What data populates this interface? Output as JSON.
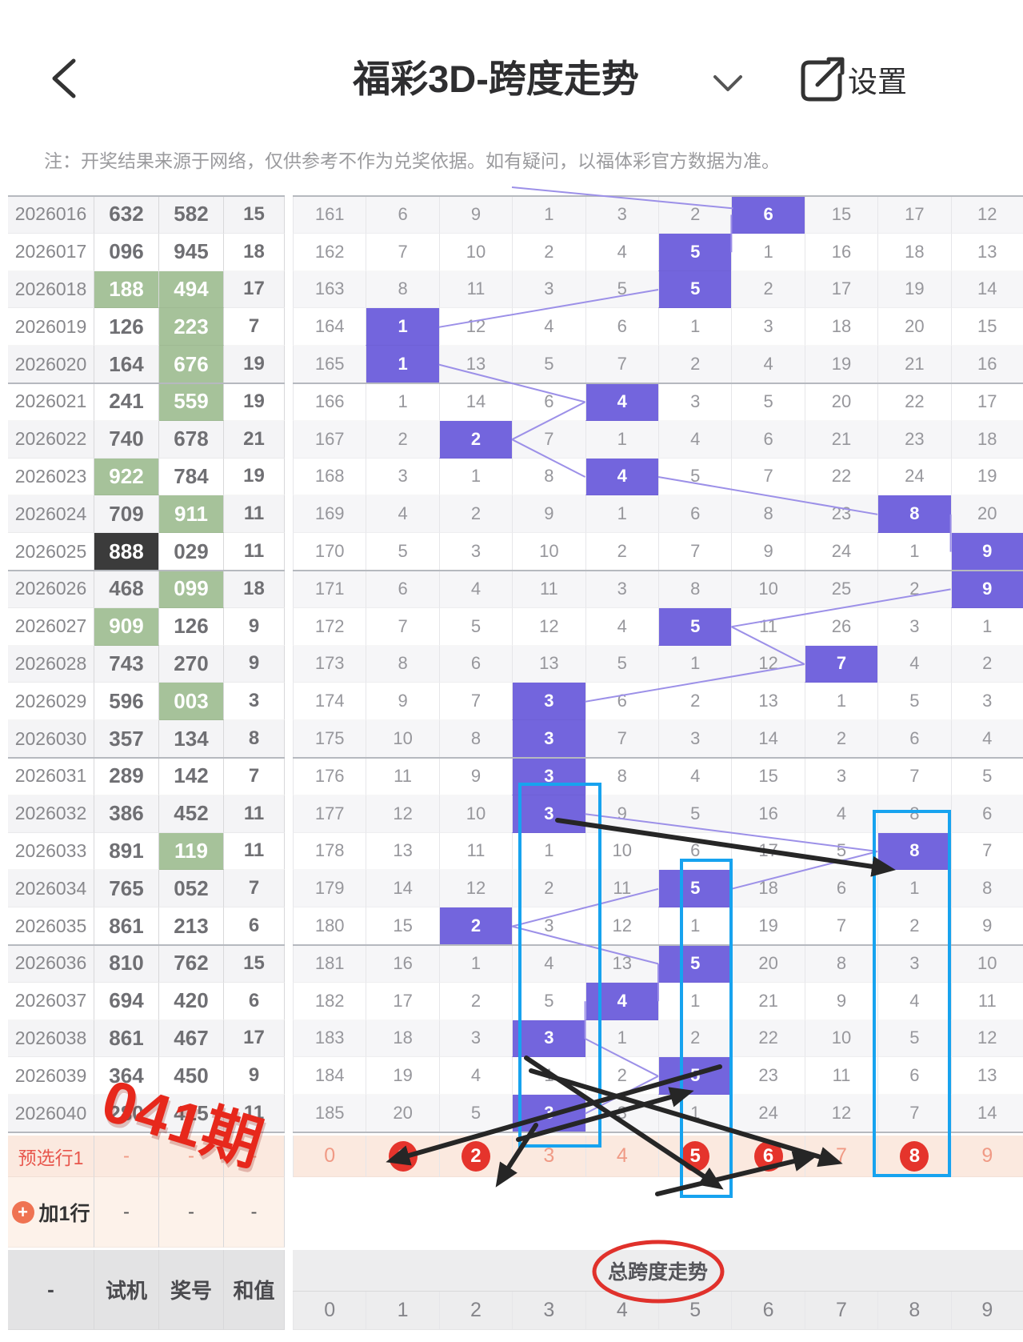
{
  "header": {
    "title": "福彩3D-跨度走势",
    "settings_label": "设置",
    "back_icon": "chevron-left-icon",
    "dropdown_icon": "chevron-down-icon",
    "share_icon": "share-icon"
  },
  "notice": "注：开奖结果来源于网络，仅供参考不作为兑奖依据。如有疑问，以福体彩官方数据为准。",
  "colors": {
    "highlight_purple": "#7365dd",
    "highlight_green": "#a6c29a",
    "highlight_black": "#3b3b3b",
    "pink_row_bg": "#fbe9df",
    "red_accent": "#e5342c",
    "cyan_annotation": "#17a3ef",
    "connector_purple": "#9c90e8"
  },
  "left_table": {
    "rows": [
      {
        "period": "2026016",
        "shiji": "632",
        "award": "582",
        "sum": "15",
        "shiji_hl": "",
        "award_hl": ""
      },
      {
        "period": "2026017",
        "shiji": "096",
        "award": "945",
        "sum": "18",
        "shiji_hl": "",
        "award_hl": ""
      },
      {
        "period": "2026018",
        "shiji": "188",
        "award": "494",
        "sum": "17",
        "shiji_hl": "green",
        "award_hl": "green"
      },
      {
        "period": "2026019",
        "shiji": "126",
        "award": "223",
        "sum": "7",
        "shiji_hl": "",
        "award_hl": "green"
      },
      {
        "period": "2026020",
        "shiji": "164",
        "award": "676",
        "sum": "19",
        "shiji_hl": "",
        "award_hl": "green"
      },
      {
        "period": "2026021",
        "shiji": "241",
        "award": "559",
        "sum": "19",
        "shiji_hl": "",
        "award_hl": "green"
      },
      {
        "period": "2026022",
        "shiji": "740",
        "award": "678",
        "sum": "21",
        "shiji_hl": "",
        "award_hl": ""
      },
      {
        "period": "2026023",
        "shiji": "922",
        "award": "784",
        "sum": "19",
        "shiji_hl": "green",
        "award_hl": ""
      },
      {
        "period": "2026024",
        "shiji": "709",
        "award": "911",
        "sum": "11",
        "shiji_hl": "",
        "award_hl": "green"
      },
      {
        "period": "2026025",
        "shiji": "888",
        "award": "029",
        "sum": "11",
        "shiji_hl": "black",
        "award_hl": ""
      },
      {
        "period": "2026026",
        "shiji": "468",
        "award": "099",
        "sum": "18",
        "shiji_hl": "",
        "award_hl": "green"
      },
      {
        "period": "2026027",
        "shiji": "909",
        "award": "126",
        "sum": "9",
        "shiji_hl": "green",
        "award_hl": ""
      },
      {
        "period": "2026028",
        "shiji": "743",
        "award": "270",
        "sum": "9",
        "shiji_hl": "",
        "award_hl": ""
      },
      {
        "period": "2026029",
        "shiji": "596",
        "award": "003",
        "sum": "3",
        "shiji_hl": "",
        "award_hl": "green"
      },
      {
        "period": "2026030",
        "shiji": "357",
        "award": "134",
        "sum": "8",
        "shiji_hl": "",
        "award_hl": ""
      },
      {
        "period": "2026031",
        "shiji": "289",
        "award": "142",
        "sum": "7",
        "shiji_hl": "",
        "award_hl": ""
      },
      {
        "period": "2026032",
        "shiji": "386",
        "award": "452",
        "sum": "11",
        "shiji_hl": "",
        "award_hl": ""
      },
      {
        "period": "2026033",
        "shiji": "891",
        "award": "119",
        "sum": "11",
        "shiji_hl": "",
        "award_hl": "green"
      },
      {
        "period": "2026034",
        "shiji": "765",
        "award": "052",
        "sum": "7",
        "shiji_hl": "",
        "award_hl": ""
      },
      {
        "period": "2026035",
        "shiji": "861",
        "award": "213",
        "sum": "6",
        "shiji_hl": "",
        "award_hl": ""
      },
      {
        "period": "2026036",
        "shiji": "810",
        "award": "762",
        "sum": "15",
        "shiji_hl": "",
        "award_hl": ""
      },
      {
        "period": "2026037",
        "shiji": "694",
        "award": "420",
        "sum": "6",
        "shiji_hl": "",
        "award_hl": ""
      },
      {
        "period": "2026038",
        "shiji": "861",
        "award": "467",
        "sum": "17",
        "shiji_hl": "",
        "award_hl": ""
      },
      {
        "period": "2026039",
        "shiji": "364",
        "award": "450",
        "sum": "9",
        "shiji_hl": "",
        "award_hl": ""
      },
      {
        "period": "2026040",
        "shiji": "280",
        "award": "425",
        "sum": "11",
        "shiji_hl": "",
        "award_hl": ""
      }
    ],
    "preselect_label": "预选行1",
    "dash": "-",
    "add_row_label": "加1行",
    "footer": [
      "-",
      "试机",
      "奖号",
      "和值"
    ]
  },
  "trend": {
    "rows": [
      {
        "values": [
          161,
          6,
          9,
          1,
          3,
          2,
          6,
          15,
          17,
          12
        ],
        "hl": 6
      },
      {
        "values": [
          162,
          7,
          10,
          2,
          4,
          5,
          1,
          16,
          18,
          13
        ],
        "hl": 5
      },
      {
        "values": [
          163,
          8,
          11,
          3,
          5,
          5,
          2,
          17,
          19,
          14
        ],
        "hl": 5
      },
      {
        "values": [
          164,
          1,
          12,
          4,
          6,
          1,
          3,
          18,
          20,
          15
        ],
        "hl": 1
      },
      {
        "values": [
          165,
          1,
          13,
          5,
          7,
          2,
          4,
          19,
          21,
          16
        ],
        "hl": 1
      },
      {
        "values": [
          166,
          1,
          14,
          6,
          4,
          3,
          5,
          20,
          22,
          17
        ],
        "hl": 4
      },
      {
        "values": [
          167,
          2,
          2,
          7,
          1,
          4,
          6,
          21,
          23,
          18
        ],
        "hl": 2
      },
      {
        "values": [
          168,
          3,
          1,
          8,
          4,
          5,
          7,
          22,
          24,
          19
        ],
        "hl": 4
      },
      {
        "values": [
          169,
          4,
          2,
          9,
          1,
          6,
          8,
          23,
          8,
          20
        ],
        "hl": 8
      },
      {
        "values": [
          170,
          5,
          3,
          10,
          2,
          7,
          9,
          24,
          1,
          9
        ],
        "hl": 9
      },
      {
        "values": [
          171,
          6,
          4,
          11,
          3,
          8,
          10,
          25,
          2,
          9
        ],
        "hl": 9
      },
      {
        "values": [
          172,
          7,
          5,
          12,
          4,
          5,
          11,
          26,
          3,
          1
        ],
        "hl": 5
      },
      {
        "values": [
          173,
          8,
          6,
          13,
          5,
          1,
          12,
          7,
          4,
          2
        ],
        "hl": 7
      },
      {
        "values": [
          174,
          9,
          7,
          3,
          6,
          2,
          13,
          1,
          5,
          3
        ],
        "hl": 3
      },
      {
        "values": [
          175,
          10,
          8,
          3,
          7,
          3,
          14,
          2,
          6,
          4
        ],
        "hl": 3
      },
      {
        "values": [
          176,
          11,
          9,
          3,
          8,
          4,
          15,
          3,
          7,
          5
        ],
        "hl": 3
      },
      {
        "values": [
          177,
          12,
          10,
          3,
          9,
          5,
          16,
          4,
          8,
          6
        ],
        "hl": 3
      },
      {
        "values": [
          178,
          13,
          11,
          1,
          10,
          6,
          17,
          5,
          8,
          7
        ],
        "hl": 8
      },
      {
        "values": [
          179,
          14,
          12,
          2,
          11,
          5,
          18,
          6,
          1,
          8
        ],
        "hl": 5
      },
      {
        "values": [
          180,
          15,
          2,
          3,
          12,
          1,
          19,
          7,
          2,
          9
        ],
        "hl": 2
      },
      {
        "values": [
          181,
          16,
          1,
          4,
          13,
          5,
          20,
          8,
          3,
          10
        ],
        "hl": 5
      },
      {
        "values": [
          182,
          17,
          2,
          5,
          4,
          1,
          21,
          9,
          4,
          11
        ],
        "hl": 4
      },
      {
        "values": [
          183,
          18,
          3,
          3,
          1,
          2,
          22,
          10,
          5,
          12
        ],
        "hl": 3
      },
      {
        "values": [
          184,
          19,
          4,
          1,
          2,
          5,
          23,
          11,
          6,
          13
        ],
        "hl": 5
      },
      {
        "values": [
          185,
          20,
          5,
          3,
          3,
          1,
          24,
          12,
          7,
          14
        ],
        "hl": 3
      }
    ],
    "preselect": {
      "values": [
        "0",
        "1",
        "2",
        "3",
        "4",
        "5",
        "6",
        "7",
        "8",
        "9"
      ],
      "circled": [
        1,
        2,
        5,
        6,
        8
      ]
    },
    "footer": {
      "title": "总跨度走势",
      "values": [
        "0",
        "1",
        "2",
        "3",
        "4",
        "5",
        "6",
        "7",
        "8",
        "9"
      ]
    }
  },
  "overlay": {
    "period_note": "041期"
  }
}
